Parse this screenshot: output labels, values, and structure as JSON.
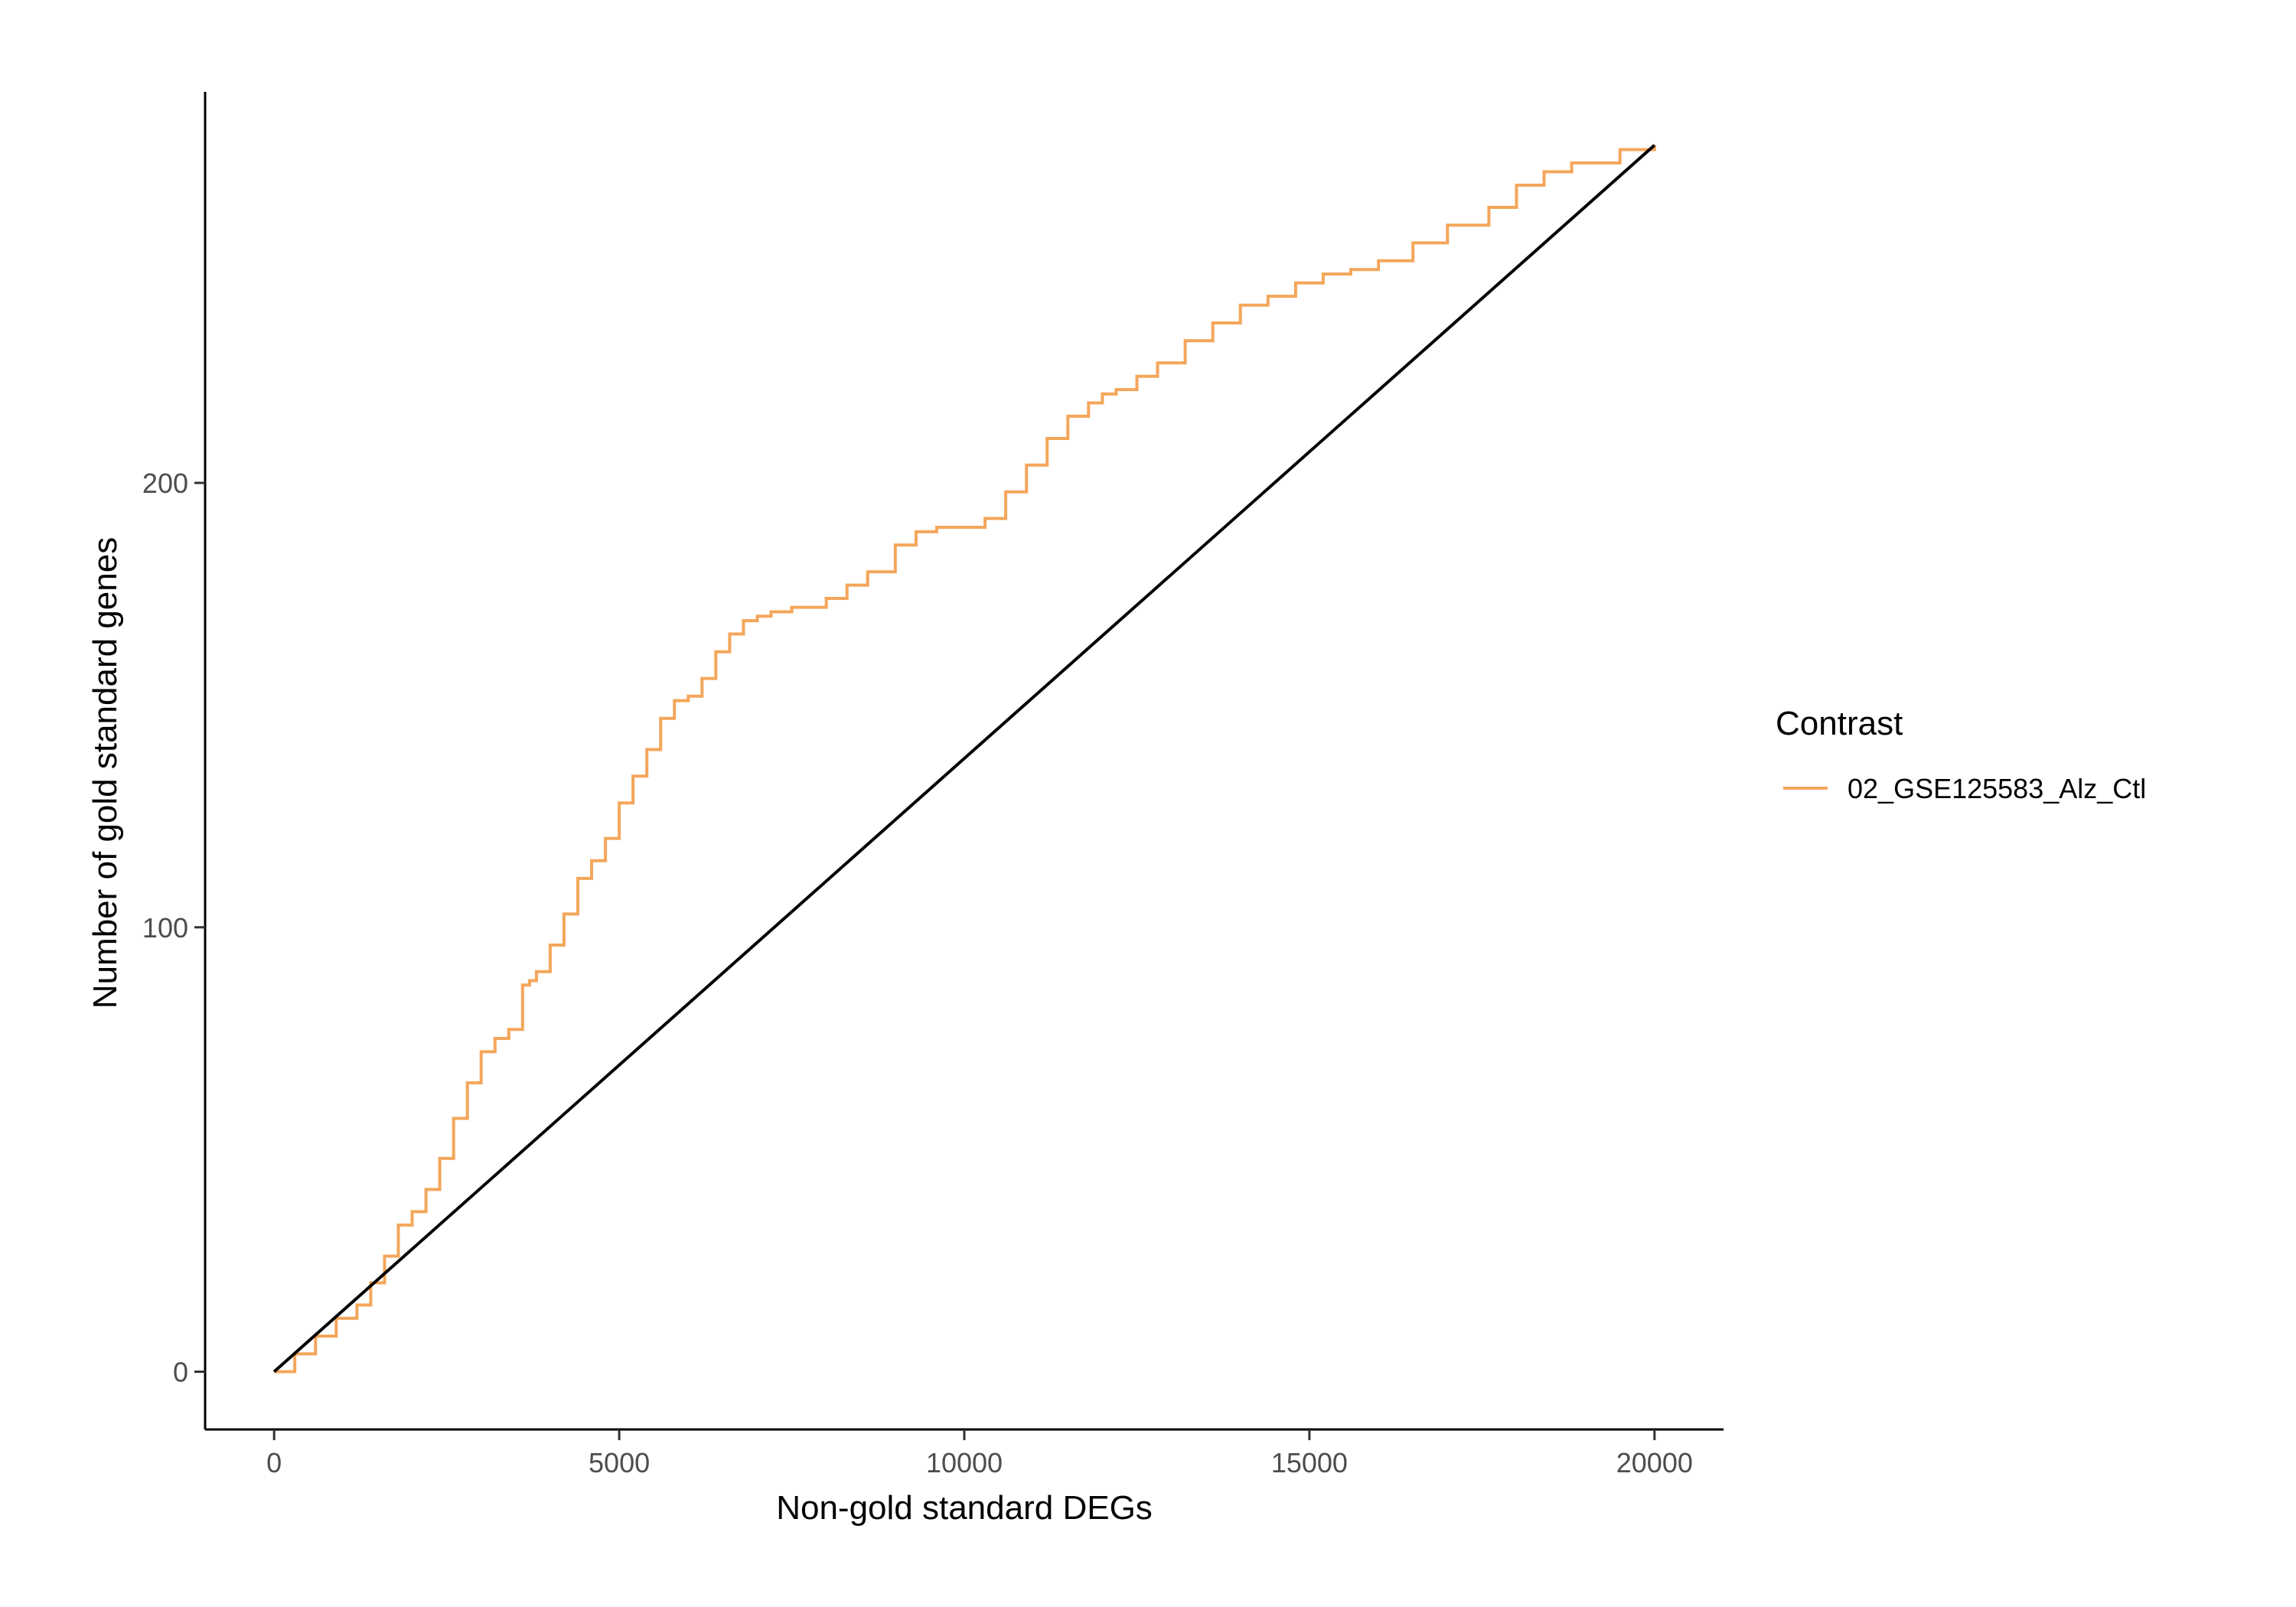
{
  "chart_data": {
    "type": "line",
    "title": "",
    "xlabel": "Non-gold standard DEGs",
    "ylabel": "Number of gold standard genes",
    "xlim": [
      -1000,
      21000
    ],
    "ylim": [
      -13,
      288
    ],
    "x_ticks": [
      0,
      5000,
      10000,
      15000,
      20000
    ],
    "x_tick_labels": [
      "0",
      "5000",
      "10000",
      "15000",
      "20000"
    ],
    "y_ticks": [
      0,
      100,
      200
    ],
    "y_tick_labels": [
      "0",
      "100",
      "200"
    ],
    "grid": false,
    "legend": {
      "title": "Contrast",
      "position": "right"
    },
    "colors": {
      "series": "#F4A65A",
      "reference": "#000000",
      "axis": "#000000"
    },
    "series": [
      {
        "name": "02_GSE125583_Alz_Ctl",
        "step": true,
        "x": [
          0,
          300,
          600,
          900,
          1200,
          1400,
          1600,
          1800,
          2000,
          2200,
          2400,
          2600,
          2800,
          3000,
          3200,
          3400,
          3600,
          3700,
          3800,
          4000,
          4200,
          4400,
          4600,
          4800,
          5000,
          5200,
          5400,
          5600,
          5800,
          6000,
          6200,
          6400,
          6600,
          6800,
          7000,
          7200,
          7500,
          8000,
          8300,
          8600,
          9000,
          9300,
          9600,
          10000,
          10300,
          10600,
          10900,
          11200,
          11500,
          11800,
          12000,
          12200,
          12500,
          12800,
          13200,
          13600,
          14000,
          14400,
          14800,
          15200,
          15600,
          16000,
          16500,
          17000,
          17600,
          18000,
          18400,
          18800,
          19500,
          20000
        ],
        "y": [
          0,
          4,
          8,
          12,
          15,
          20,
          26,
          33,
          36,
          41,
          48,
          57,
          65,
          72,
          75,
          77,
          87,
          88,
          90,
          96,
          103,
          111,
          115,
          120,
          128,
          134,
          140,
          147,
          151,
          152,
          156,
          162,
          166,
          169,
          170,
          171,
          172,
          174,
          177,
          180,
          186,
          189,
          190,
          190,
          192,
          198,
          204,
          210,
          215,
          218,
          220,
          221,
          224,
          227,
          232,
          236,
          240,
          242,
          245,
          247,
          248,
          250,
          254,
          258,
          262,
          267,
          270,
          272,
          275,
          276
        ]
      }
    ],
    "reference_line": {
      "from": [
        0,
        0
      ],
      "to": [
        20000,
        276
      ]
    }
  }
}
